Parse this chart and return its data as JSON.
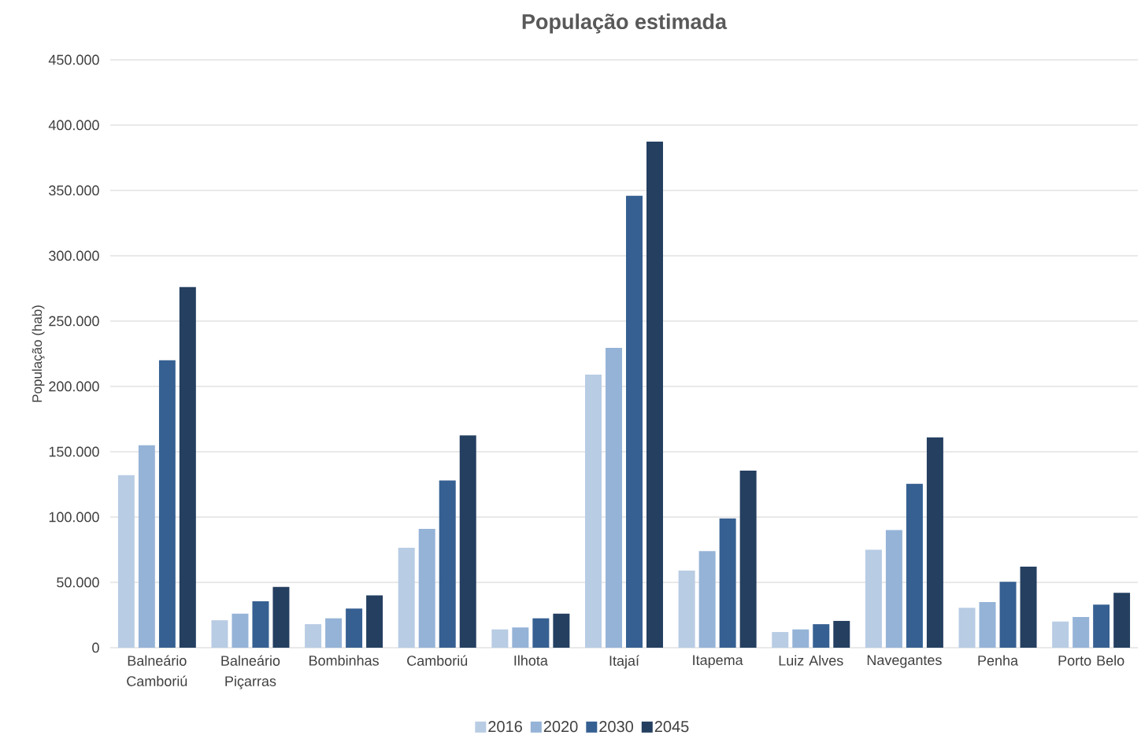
{
  "chart_data": {
    "type": "bar",
    "title": "População estimada",
    "ylabel": "População (hab)",
    "categories": [
      "Balneário Camboriú",
      "Balneário Piçarras",
      "Bombinhas",
      "Camboriú",
      "Ilhota",
      "Itajaí",
      "Itapema",
      "Luiz Alves",
      "Navegantes",
      "Penha",
      "Porto Belo"
    ],
    "series": [
      {
        "name": "2016",
        "color": "#b8cce4",
        "values": [
          132000,
          21000,
          18000,
          76500,
          14000,
          209000,
          59000,
          12000,
          75000,
          30500,
          20000
        ]
      },
      {
        "name": "2020",
        "color": "#95b3d7",
        "values": [
          155000,
          26000,
          22500,
          91000,
          15500,
          229500,
          74000,
          14000,
          90000,
          35000,
          23500
        ]
      },
      {
        "name": "2030",
        "color": "#366092",
        "values": [
          220000,
          35500,
          30000,
          128000,
          22500,
          346000,
          99000,
          18000,
          125500,
          50500,
          33000
        ]
      },
      {
        "name": "2045",
        "color": "#243f60",
        "values": [
          276000,
          46500,
          40000,
          162500,
          26000,
          387500,
          135500,
          20500,
          161000,
          62000,
          42000
        ]
      }
    ],
    "ylim": [
      0,
      450000
    ],
    "yticks": [
      0,
      {
        "value": 50000,
        "label": "50.000"
      },
      {
        "value": 100000,
        "label": "100.000"
      },
      {
        "value": 150000,
        "label": "150.000"
      },
      {
        "value": 200000,
        "label": "200.000"
      },
      {
        "value": 250000,
        "label": "250.000"
      },
      {
        "value": 300000,
        "label": "300.000"
      },
      {
        "value": 350000,
        "label": "350.000"
      },
      {
        "value": 400000,
        "label": "400.000"
      },
      {
        "value": 450000,
        "label": "450.000"
      }
    ],
    "grid": "y",
    "legend": "bottom"
  }
}
